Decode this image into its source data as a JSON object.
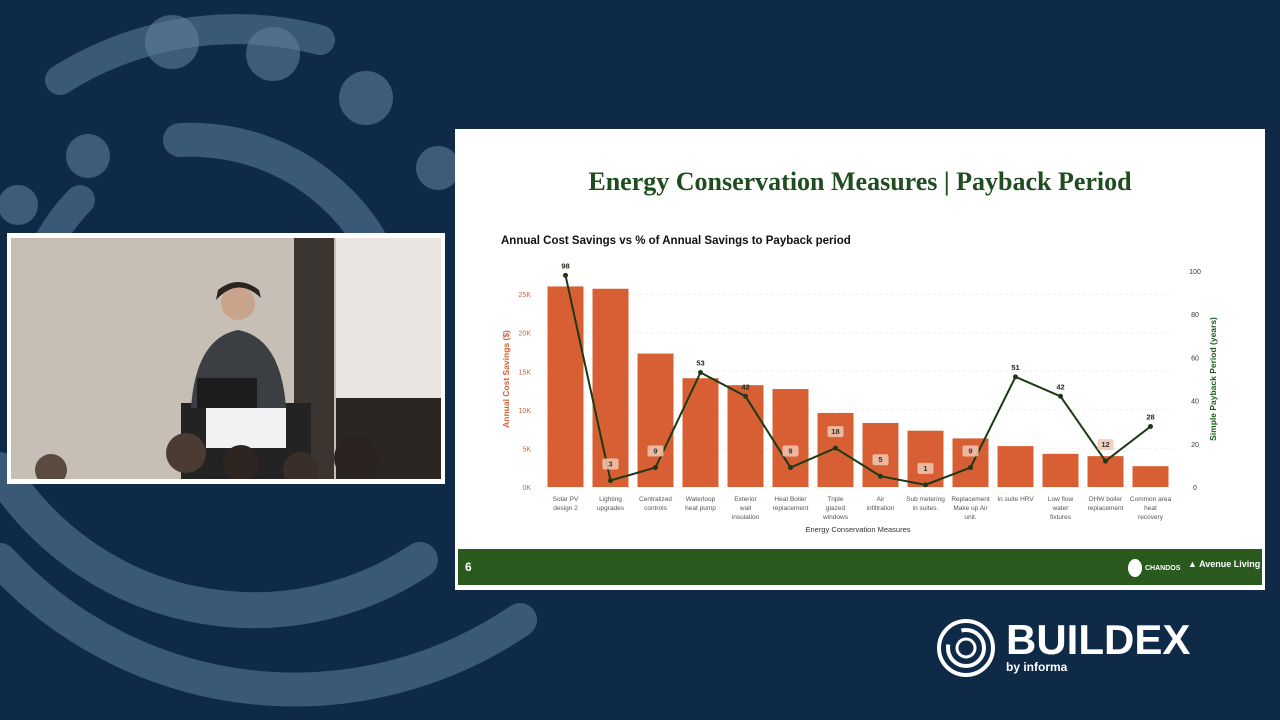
{
  "slide": {
    "title": "Energy Conservation Measures | Payback Period",
    "page_number": "6",
    "logo_left": "CHANDOS",
    "logo_right": "Avenue Living"
  },
  "brand": {
    "name": "BUILDEX",
    "sub": "by informa"
  },
  "chart_data": {
    "type": "bar",
    "title": "Annual Cost Savings vs % of Annual Savings to Payback period",
    "xlabel": "Energy Conservation Measures",
    "ylabel": "Annual Cost Savings ($)",
    "y2label": "Simple Payback Period (years)",
    "categories": [
      "Solar PV design 2",
      "Lighting upgrades",
      "Centralized controls",
      "Waterloop heat pump",
      "Exterior wall insulation",
      "Heat Boiler replacement",
      "Triple glazed windows",
      "Air infiltration",
      "Sub metering in suites.",
      "Replacement Make up Air unit.",
      "In suite HRV",
      "Low flow water fixtures",
      "DHW boiler replacement",
      "Common area heat recovery"
    ],
    "ylim": [
      0,
      28000
    ],
    "yticks": [
      "0K",
      "5K",
      "10K",
      "15K",
      "20K",
      "25K"
    ],
    "y2lim": [
      0,
      100
    ],
    "y2ticks": [
      "0",
      "20",
      "40",
      "60",
      "80",
      "100"
    ],
    "grid": true,
    "series": [
      {
        "name": "Annual Cost Savings ($)",
        "type": "bar",
        "color": "#d85f33",
        "values": [
          26000,
          25700,
          17300,
          14100,
          13200,
          12700,
          9600,
          8300,
          7300,
          6300,
          5300,
          4300,
          4000,
          2700
        ]
      },
      {
        "name": "Simple Payback Period (years)",
        "type": "line",
        "color": "#1b3a14",
        "values": [
          98,
          3,
          9,
          53,
          42,
          9,
          18,
          5,
          1,
          9,
          51,
          42,
          12,
          28
        ],
        "labels": [
          "98",
          "3",
          "9",
          "53",
          "42",
          "9",
          "18",
          "5",
          "1",
          "9",
          "51",
          "42",
          "12",
          "28"
        ]
      }
    ]
  }
}
